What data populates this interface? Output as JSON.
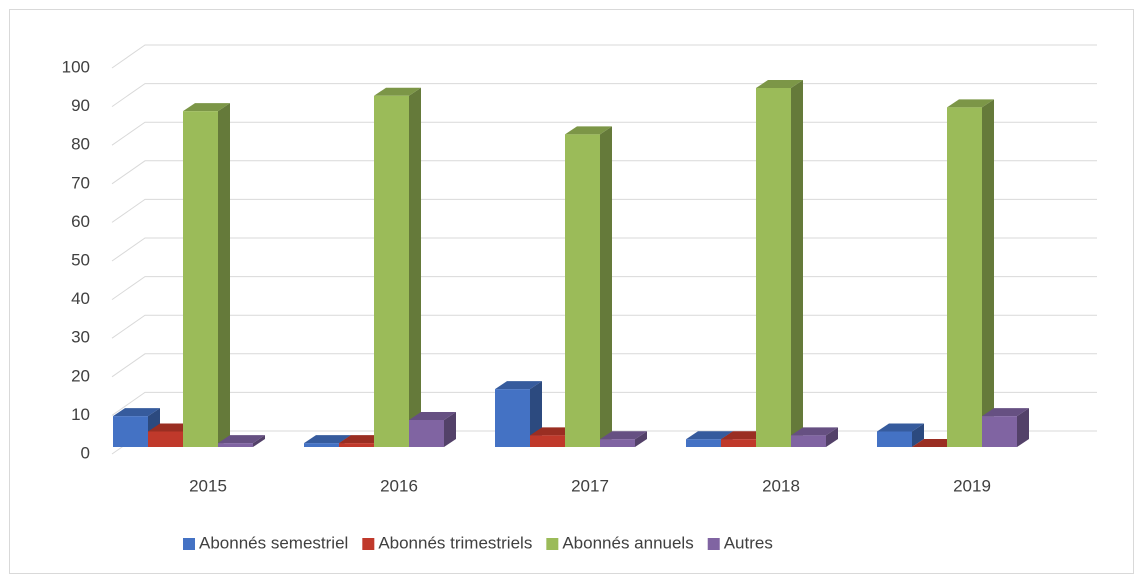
{
  "chart_data": {
    "type": "bar3d",
    "categories": [
      "2015",
      "2016",
      "2017",
      "2018",
      "2019"
    ],
    "series": [
      {
        "name": "Abonnés semestriel",
        "color": "#4472c4",
        "values": [
          8,
          1,
          15,
          2,
          4
        ]
      },
      {
        "name": "Abonnés trimestriels",
        "color": "#c0392b",
        "values": [
          4,
          1,
          3,
          2,
          0
        ]
      },
      {
        "name": "Abonnés annuels",
        "color": "#9bbb59",
        "values": [
          87,
          91,
          81,
          93,
          88
        ]
      },
      {
        "name": "Autres",
        "color": "#8064a2",
        "values": [
          1,
          7,
          2,
          3,
          8
        ]
      }
    ],
    "ylim": [
      0,
      100
    ],
    "yticks": [
      0,
      10,
      20,
      30,
      40,
      50,
      60,
      70,
      80,
      90,
      100
    ],
    "grid": true,
    "legend": "bottom"
  }
}
